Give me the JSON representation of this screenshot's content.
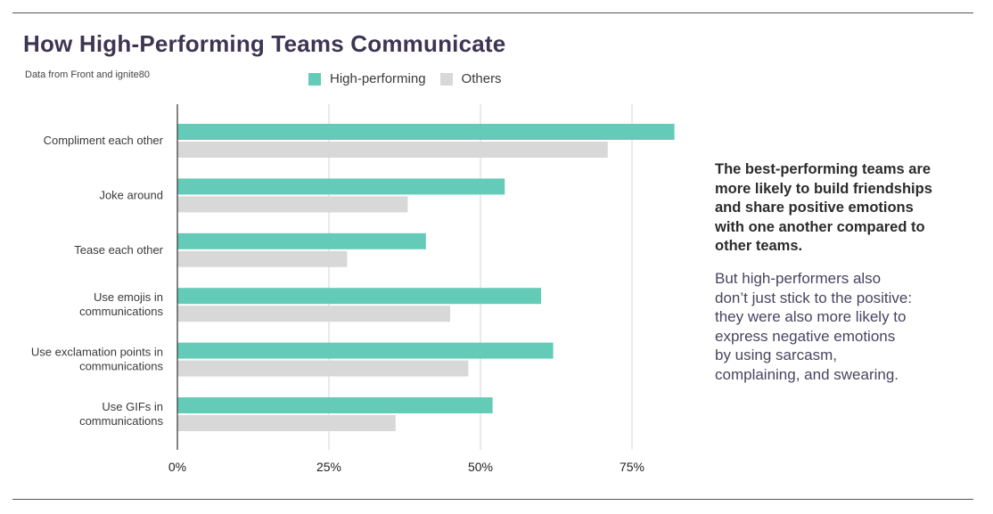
{
  "header": {
    "title": "How High-Performing Teams Communicate",
    "source": "Data from Front and ignite80"
  },
  "colors": {
    "high_performing": "#63cbb7",
    "others": "#d8d8d8",
    "grid": "#d4d4d4",
    "axis": "#333333"
  },
  "chart_data": {
    "type": "bar",
    "orientation": "horizontal",
    "categories": [
      [
        "Compliment each other"
      ],
      [
        "Joke around"
      ],
      [
        "Tease each other"
      ],
      [
        "Use emojis in",
        "communications"
      ],
      [
        "Use exclamation points in",
        "communications"
      ],
      [
        "Use GIFs in",
        "communications"
      ]
    ],
    "series": [
      {
        "name": "High-performing",
        "values": [
          82,
          54,
          41,
          60,
          62,
          52
        ]
      },
      {
        "name": "Others",
        "values": [
          71,
          38,
          28,
          45,
          48,
          36
        ]
      }
    ],
    "x_ticks": [
      "0%",
      "25%",
      "50%",
      "75%"
    ],
    "xlim": [
      0,
      100
    ],
    "grid": true,
    "legend": "top"
  },
  "sidebar": {
    "bold_lines": [
      "The best-performing teams are",
      "more likely to build friendships",
      "and share positive emotions",
      "with one another compared to",
      "other teams."
    ],
    "body_lines": [
      "But high-performers also",
      "don’t just stick to the positive:",
      "they were also more likely to",
      "express negative emotions",
      "by using sarcasm,",
      "complaining, and swearing."
    ]
  }
}
